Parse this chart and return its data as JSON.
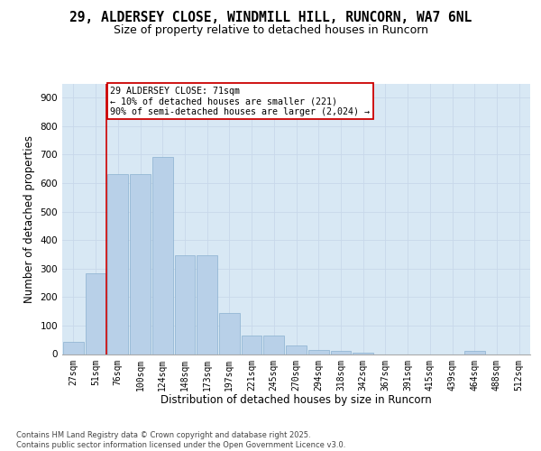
{
  "title_line1": "29, ALDERSEY CLOSE, WINDMILL HILL, RUNCORN, WA7 6NL",
  "title_line2": "Size of property relative to detached houses in Runcorn",
  "xlabel": "Distribution of detached houses by size in Runcorn",
  "ylabel": "Number of detached properties",
  "categories": [
    "27sqm",
    "51sqm",
    "76sqm",
    "100sqm",
    "124sqm",
    "148sqm",
    "173sqm",
    "197sqm",
    "221sqm",
    "245sqm",
    "270sqm",
    "294sqm",
    "318sqm",
    "342sqm",
    "367sqm",
    "391sqm",
    "415sqm",
    "439sqm",
    "464sqm",
    "488sqm",
    "512sqm"
  ],
  "values": [
    42,
    283,
    632,
    632,
    693,
    347,
    347,
    143,
    65,
    65,
    30,
    13,
    10,
    5,
    0,
    0,
    0,
    0,
    10,
    0,
    0
  ],
  "bar_color": "#b8d0e8",
  "bar_edge_color": "#8ab0d0",
  "vline_x_idx": 1.5,
  "vline_color": "#cc0000",
  "annotation_text": "29 ALDERSEY CLOSE: 71sqm\n← 10% of detached houses are smaller (221)\n90% of semi-detached houses are larger (2,024) →",
  "annotation_box_facecolor": "#ffffff",
  "annotation_box_edgecolor": "#cc0000",
  "ylim_max": 950,
  "yticks": [
    0,
    100,
    200,
    300,
    400,
    500,
    600,
    700,
    800,
    900
  ],
  "grid_color": "#c8d8ea",
  "bg_color": "#d8e8f4",
  "footer_text": "Contains HM Land Registry data © Crown copyright and database right 2025.\nContains public sector information licensed under the Open Government Licence v3.0."
}
